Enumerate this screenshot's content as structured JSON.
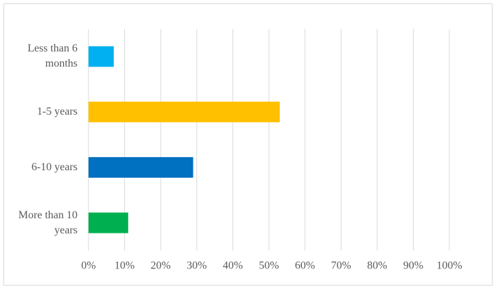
{
  "chart_data": {
    "type": "bar",
    "orientation": "horizontal",
    "categories": [
      "Less than 6 months",
      "1-5 years",
      "6-10 years",
      "More than 10 years"
    ],
    "values": [
      7,
      53,
      29,
      11
    ],
    "colors": [
      "#00b0f0",
      "#ffc000",
      "#0070c0",
      "#00b050"
    ],
    "xlim": [
      0,
      100
    ],
    "xticks": [
      {
        "value": 0,
        "label": "0%"
      },
      {
        "value": 10,
        "label": "10%"
      },
      {
        "value": 20,
        "label": "20%"
      },
      {
        "value": 30,
        "label": "30%"
      },
      {
        "value": 40,
        "label": "40%"
      },
      {
        "value": 50,
        "label": "50%"
      },
      {
        "value": 60,
        "label": "60%"
      },
      {
        "value": 70,
        "label": "70%"
      },
      {
        "value": 80,
        "label": "80%"
      },
      {
        "value": 90,
        "label": "90%"
      },
      {
        "value": 100,
        "label": "100%"
      }
    ],
    "grid": true
  }
}
